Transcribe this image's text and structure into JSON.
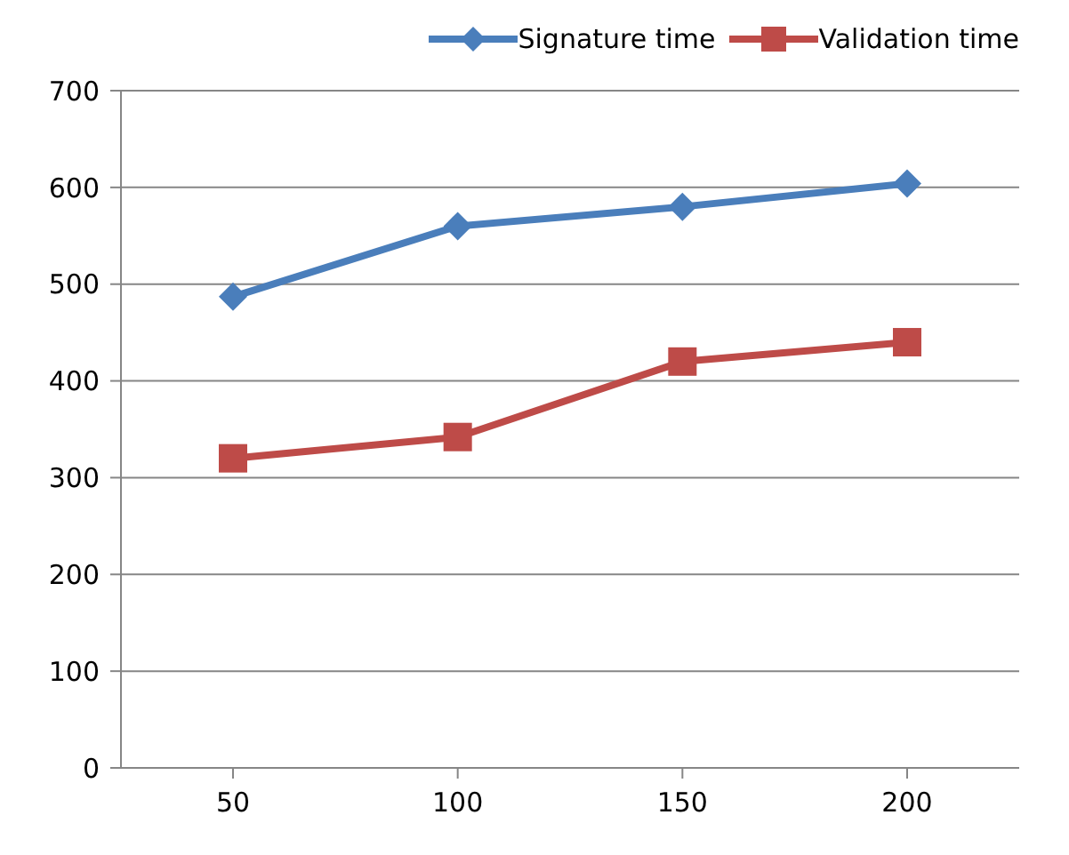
{
  "chart_data": {
    "type": "line",
    "categories": [
      "50",
      "100",
      "150",
      "200"
    ],
    "series": [
      {
        "name": "Signature time",
        "color": "#4a7ebb",
        "values": [
          487,
          560,
          580,
          604
        ],
        "marker": "diamond"
      },
      {
        "name": "Validation time",
        "color": "#be4b48",
        "values": [
          320,
          342,
          420,
          440
        ],
        "marker": "square"
      }
    ],
    "ylim": [
      0,
      700
    ],
    "yticks": [
      0,
      100,
      200,
      300,
      400,
      500,
      600,
      700
    ],
    "grid": "y",
    "legend": "top right"
  }
}
